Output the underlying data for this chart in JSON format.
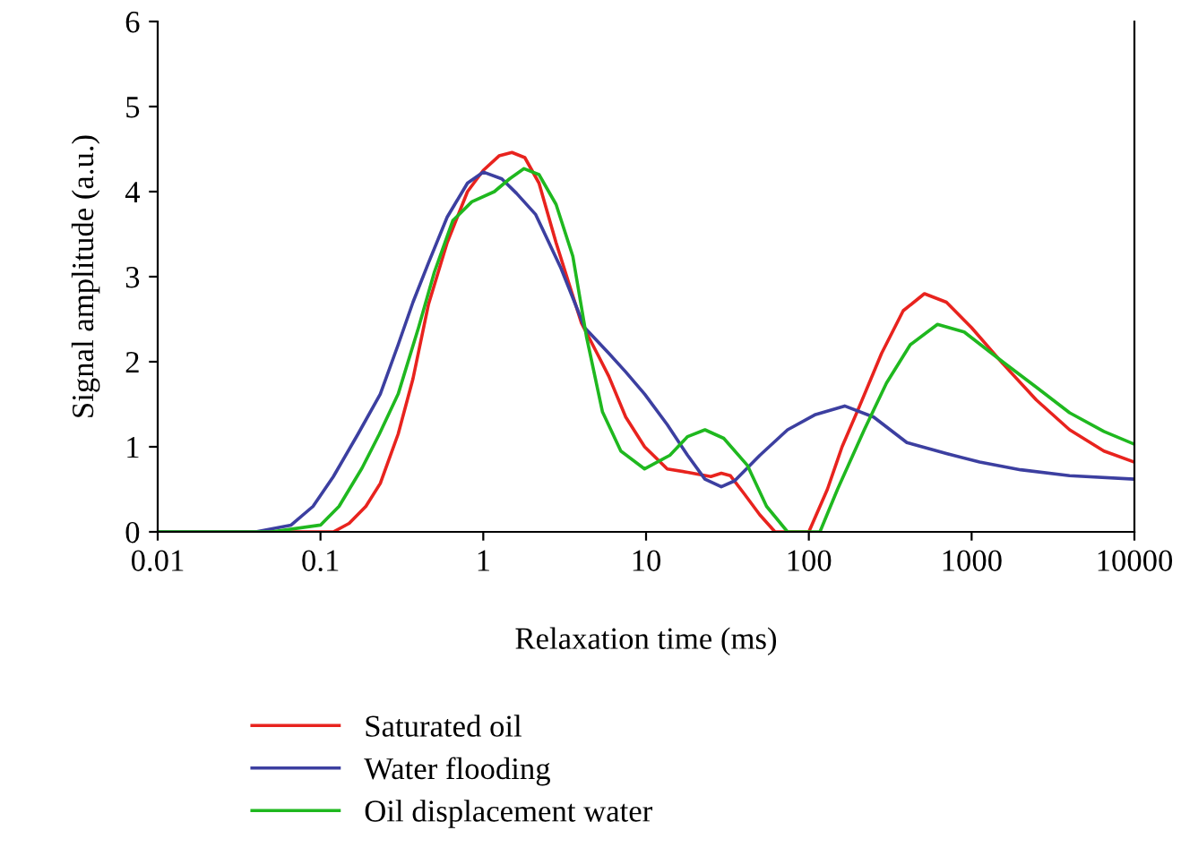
{
  "chart_data": {
    "type": "line",
    "xlabel": "Relaxation time (ms)",
    "ylabel": "Signal amplitude (a.u.)",
    "log": "x",
    "xlim": [
      0.01,
      10000
    ],
    "ylim": [
      0,
      6
    ],
    "xticks": [
      {
        "value": 0.01,
        "label": "0.01"
      },
      {
        "value": 0.1,
        "label": "0.1"
      },
      1,
      10,
      100,
      1000,
      10000
    ],
    "yticks": [
      0,
      1,
      2,
      3,
      4,
      5,
      6
    ],
    "grid": false,
    "legend": "bottom left",
    "marker": "none",
    "line_style": "solid",
    "series": [
      {
        "name": "Saturated oil",
        "color": "#e8231e",
        "x": [
          0.01,
          0.12,
          0.15,
          0.19,
          0.233,
          0.3,
          0.37,
          0.46,
          0.6,
          0.8,
          1.0,
          1.25,
          1.5,
          1.8,
          2.2,
          2.8,
          4,
          5,
          5.9,
          7.5,
          9.8,
          13.5,
          18,
          25,
          29,
          33,
          40,
          50,
          62,
          100,
          130,
          160,
          204,
          280,
          380,
          513,
          700,
          1000,
          1550,
          2500,
          4000,
          6500,
          10000
        ],
        "values": [
          0,
          0,
          0.1,
          0.3,
          0.57,
          1.15,
          1.8,
          2.67,
          3.4,
          4.0,
          4.25,
          4.42,
          4.46,
          4.4,
          4.1,
          3.4,
          2.46,
          2.1,
          1.83,
          1.35,
          1.0,
          0.74,
          0.7,
          0.65,
          0.69,
          0.66,
          0.45,
          0.2,
          0,
          0,
          0.5,
          1.0,
          1.47,
          2.1,
          2.6,
          2.8,
          2.7,
          2.4,
          1.98,
          1.55,
          1.2,
          0.95,
          0.82
        ]
      },
      {
        "name": "Water flooding",
        "color": "#3c3fa0",
        "x": [
          0.01,
          0.04,
          0.066,
          0.09,
          0.12,
          0.17,
          0.233,
          0.3,
          0.37,
          0.46,
          0.6,
          0.8,
          1.0,
          1.3,
          1.6,
          2.1,
          3,
          4.2,
          5.9,
          7.5,
          9.8,
          13.5,
          18,
          23,
          29,
          35,
          50,
          74,
          110,
          166,
          250,
          400,
          700,
          1120,
          2000,
          4000,
          10000
        ],
        "values": [
          0,
          0,
          0.08,
          0.3,
          0.65,
          1.15,
          1.62,
          2.2,
          2.7,
          3.16,
          3.7,
          4.1,
          4.23,
          4.15,
          3.98,
          3.73,
          3.1,
          2.4,
          2.1,
          1.88,
          1.62,
          1.26,
          0.9,
          0.62,
          0.53,
          0.6,
          0.9,
          1.2,
          1.38,
          1.48,
          1.35,
          1.05,
          0.92,
          0.82,
          0.73,
          0.66,
          0.62
        ]
      },
      {
        "name": "Oil displacement water",
        "color": "#1fb81f",
        "x": [
          0.01,
          0.05,
          0.1,
          0.13,
          0.18,
          0.23,
          0.3,
          0.4,
          0.5,
          0.65,
          0.85,
          1.17,
          1.45,
          1.78,
          2.2,
          2.8,
          3.55,
          4.3,
          5.4,
          7,
          9.8,
          14,
          18,
          23,
          30,
          42,
          55,
          74,
          117,
          150,
          219,
          300,
          420,
          617,
          900,
          1550,
          2500,
          4000,
          6500,
          10000
        ],
        "values": [
          0,
          0,
          0.08,
          0.3,
          0.75,
          1.15,
          1.62,
          2.4,
          3.05,
          3.66,
          3.88,
          4.0,
          4.15,
          4.27,
          4.2,
          3.85,
          3.24,
          2.3,
          1.41,
          0.95,
          0.74,
          0.9,
          1.12,
          1.2,
          1.1,
          0.78,
          0.3,
          0,
          0,
          0.5,
          1.2,
          1.75,
          2.2,
          2.44,
          2.35,
          2.0,
          1.7,
          1.4,
          1.18,
          1.03
        ]
      }
    ]
  }
}
